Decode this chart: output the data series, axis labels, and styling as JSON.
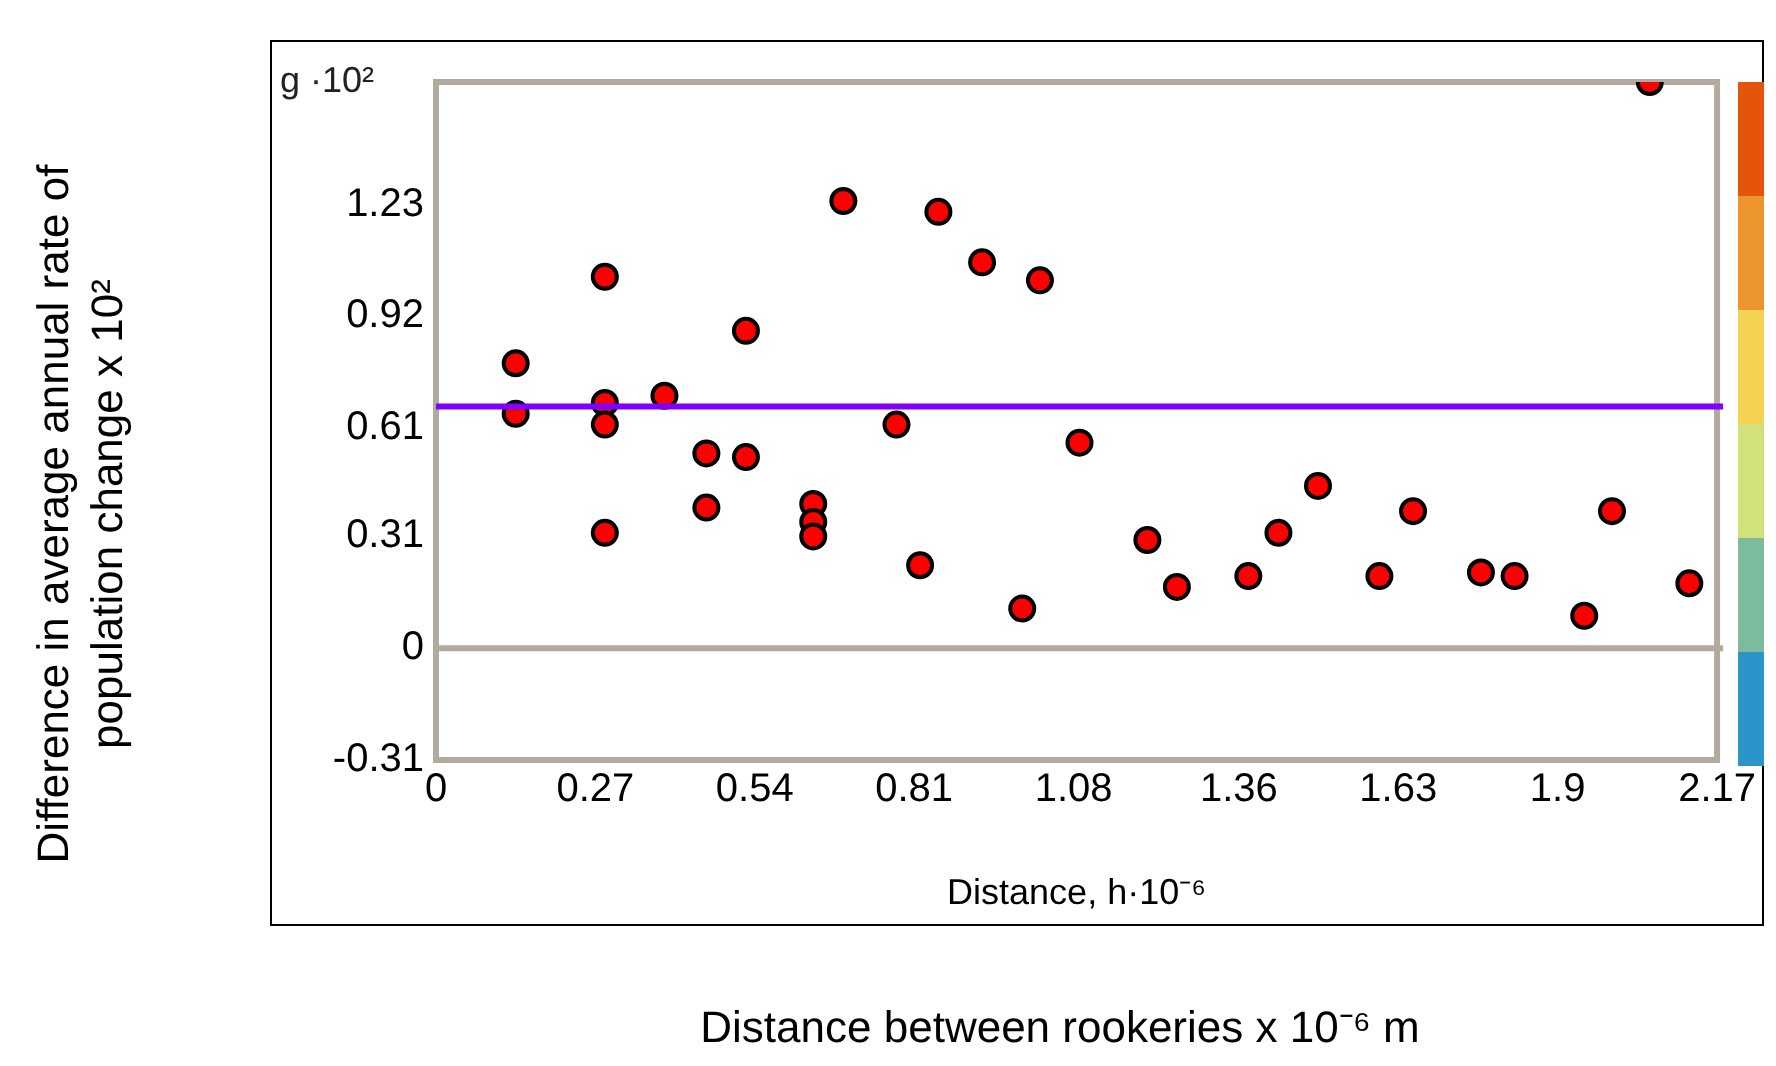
{
  "chart_data": {
    "type": "scatter",
    "xlabel": "Distance, h·10⁻⁶",
    "ylabel": "Difference in average annual rate of population change x 10²",
    "annotations": [
      "g ·10²",
      "Distance between rookeries x 10⁻⁶ m"
    ],
    "x": [
      0.135,
      0.135,
      0.286,
      0.286,
      0.286,
      0.286,
      0.387,
      0.458,
      0.458,
      0.525,
      0.525,
      0.639,
      0.639,
      0.639,
      0.69,
      0.78,
      0.82,
      0.851,
      0.925,
      0.993,
      1.023,
      1.09,
      1.205,
      1.255,
      1.376,
      1.427,
      1.494,
      1.598,
      1.655,
      1.77,
      1.827,
      1.945,
      1.992,
      2.056,
      2.123
    ],
    "series": [
      {
        "color": "#ff0000",
        "values": [
          0.79,
          0.65,
          1.03,
          0.68,
          0.62,
          0.32,
          0.7,
          0.54,
          0.39,
          0.88,
          0.53,
          0.4,
          0.35,
          0.31,
          1.24,
          0.62,
          0.23,
          1.21,
          1.07,
          0.11,
          1.02,
          0.57,
          0.3,
          0.17,
          0.2,
          0.32,
          0.45,
          0.2,
          0.38,
          0.21,
          0.2,
          0.09,
          0.38,
          1.57,
          0.18
        ]
      }
    ],
    "xlim": [
      0,
      2.17
    ],
    "xticks": [
      0,
      0.27,
      0.54,
      0.81,
      1.08,
      1.36,
      1.63,
      1.9,
      2.17
    ],
    "ylim": [
      -0.31,
      1.57
    ],
    "yticks": [
      -0.31,
      0,
      0.31,
      0.61,
      0.92,
      1.23
    ],
    "ref_lines": [
      {
        "axis": "y",
        "value": 0,
        "color": "#b0ab9c"
      },
      {
        "axis": "y",
        "value": 0.67,
        "color": "#7f00ff"
      }
    ],
    "grid": false,
    "legend": false,
    "marker": "circle"
  }
}
